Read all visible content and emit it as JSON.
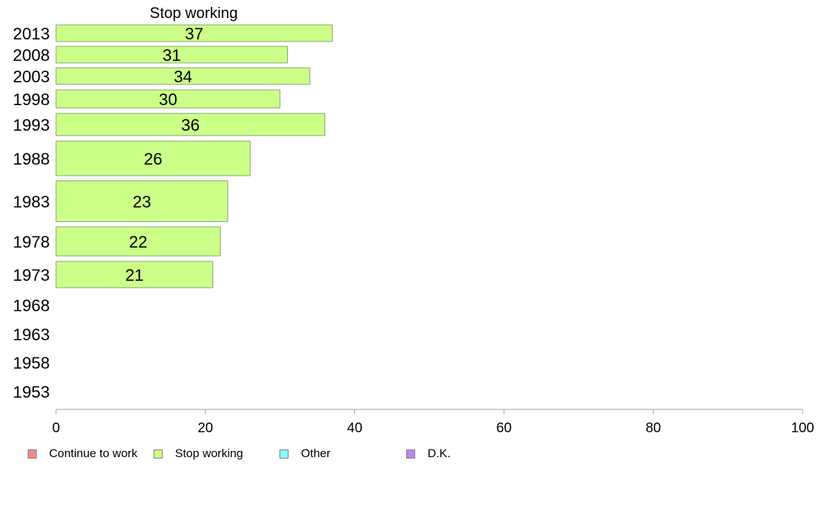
{
  "chart_data": {
    "type": "bar",
    "orientation": "horizontal",
    "title": "Stop working",
    "categories": [
      "2013",
      "2008",
      "2003",
      "1998",
      "1993",
      "1988",
      "1983",
      "1978",
      "1973",
      "1968",
      "1963",
      "1958",
      "1953"
    ],
    "series": [
      {
        "name": "Stop working",
        "color": "#ccff88",
        "values": [
          37,
          31,
          34,
          30,
          36,
          26,
          23,
          22,
          21,
          null,
          null,
          null,
          null
        ]
      }
    ],
    "data_labels": [
      "37",
      "31",
      "34",
      "30",
      "36",
      "26",
      "23",
      "22",
      "21",
      "",
      "",
      "",
      ""
    ],
    "xlim": [
      0,
      100
    ],
    "xticks": [
      "0",
      "20",
      "40",
      "60",
      "80",
      "100"
    ],
    "grid": false,
    "legend_position": "bottom",
    "legend": [
      {
        "label": "Continue to work",
        "color": "#f48a8a"
      },
      {
        "label": "Stop working",
        "color": "#ccff88"
      },
      {
        "label": "Other",
        "color": "#88ffff"
      },
      {
        "label": "D.K.",
        "color": "#bb88ee"
      }
    ]
  }
}
